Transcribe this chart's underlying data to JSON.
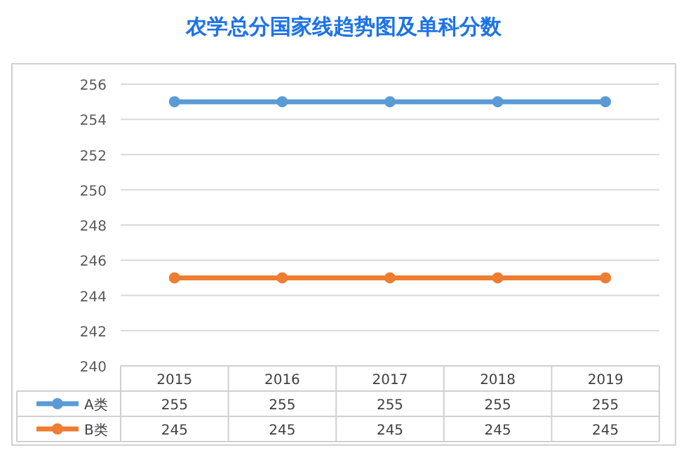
{
  "chart_data": {
    "type": "line",
    "title": "农学总分国家线趋势图及单科分数",
    "categories": [
      "2015",
      "2016",
      "2017",
      "2018",
      "2019"
    ],
    "series": [
      {
        "name": "A类",
        "color": "#5b9bd5",
        "values": [
          255,
          255,
          255,
          255,
          255
        ]
      },
      {
        "name": "B类",
        "color": "#ed7d31",
        "values": [
          245,
          245,
          245,
          245,
          245
        ]
      }
    ],
    "ylim": [
      240,
      256
    ],
    "yticks": [
      240,
      242,
      244,
      246,
      248,
      250,
      252,
      254,
      256
    ],
    "grid": "y",
    "marker": "circle",
    "data_labels": true,
    "legend": "bottom"
  }
}
